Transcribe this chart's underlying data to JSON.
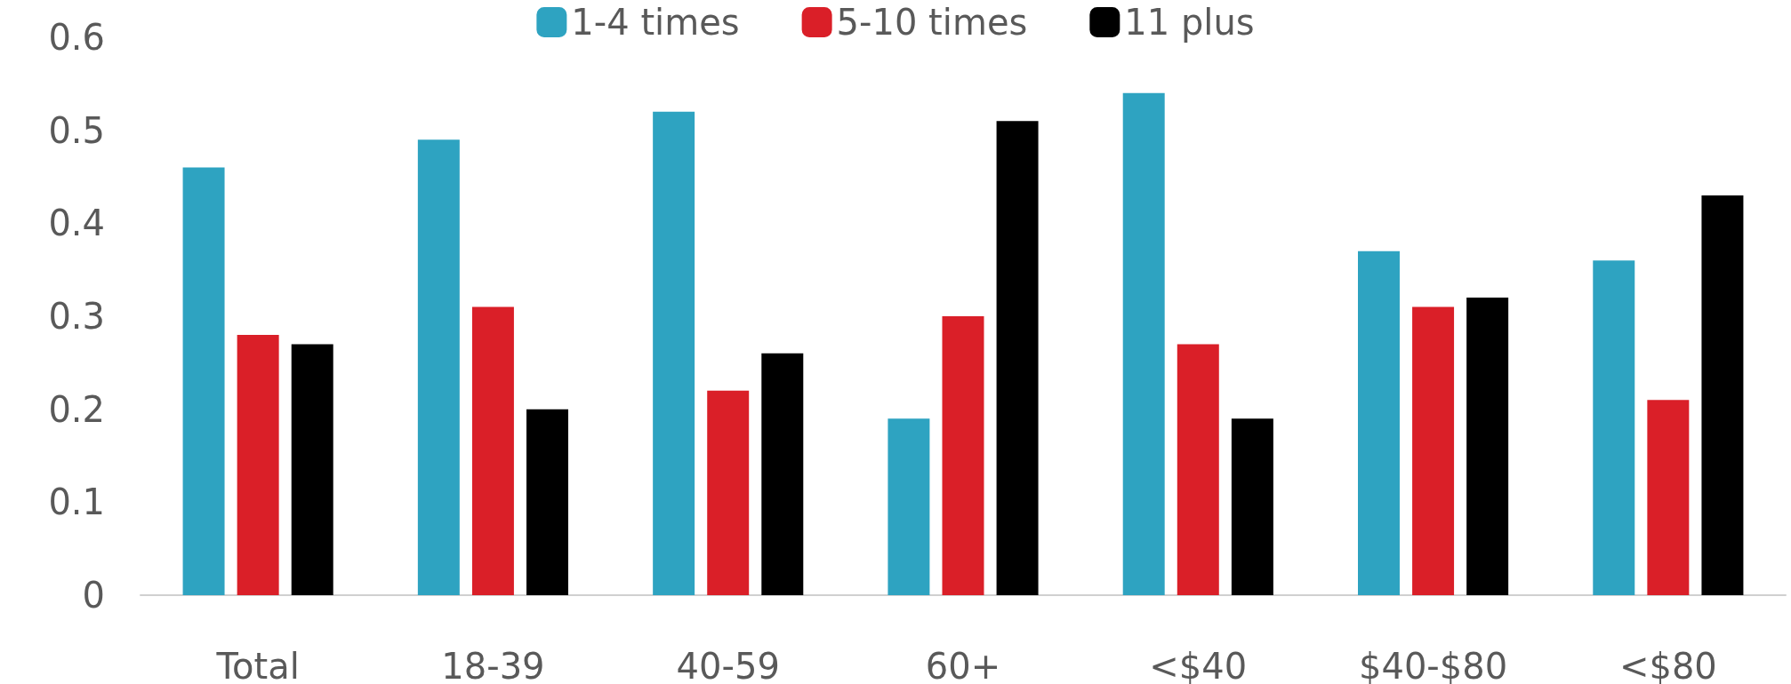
{
  "chart_data": {
    "type": "bar",
    "categories": [
      "Total",
      "18-39",
      "40-59",
      "60+",
      "<$40",
      "$40-$80",
      "<$80"
    ],
    "series": [
      {
        "name": "1-4 times",
        "color": "#2ea3c1",
        "values": [
          0.46,
          0.49,
          0.52,
          0.19,
          0.54,
          0.37,
          0.36
        ]
      },
      {
        "name": "5-10 times",
        "color": "#da1f28",
        "values": [
          0.28,
          0.31,
          0.22,
          0.3,
          0.27,
          0.31,
          0.21
        ]
      },
      {
        "name": "11 plus",
        "color": "#000000",
        "values": [
          0.27,
          0.2,
          0.26,
          0.51,
          0.19,
          0.32,
          0.43
        ]
      }
    ],
    "ylim": [
      0,
      0.6
    ],
    "yticks": [
      0,
      0.1,
      0.2,
      0.3,
      0.4,
      0.5,
      0.6
    ],
    "grid": false,
    "legend": "top"
  }
}
